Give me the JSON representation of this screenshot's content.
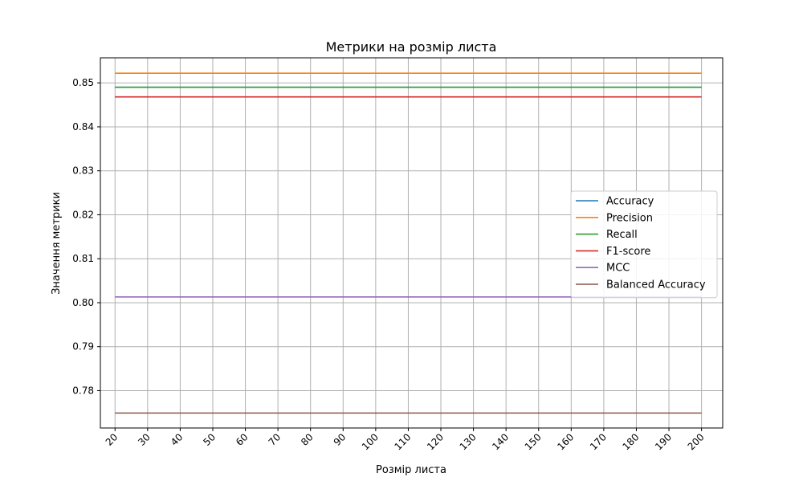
{
  "chart_data": {
    "type": "line",
    "title": "Метрики на розмір листа",
    "xlabel": "Розмір листа",
    "ylabel": "Значення метрики",
    "x": [
      20,
      30,
      40,
      50,
      60,
      70,
      80,
      90,
      100,
      110,
      120,
      130,
      140,
      150,
      160,
      170,
      180,
      190,
      200
    ],
    "x_tick_labels": [
      "20",
      "30",
      "40",
      "50",
      "60",
      "70",
      "80",
      "90",
      "100",
      "110",
      "120",
      "130",
      "140",
      "150",
      "160",
      "170",
      "180",
      "190",
      "200"
    ],
    "y_tick_values": [
      0.78,
      0.79,
      0.8,
      0.81,
      0.82,
      0.83,
      0.84,
      0.85
    ],
    "y_tick_labels": [
      "0.78",
      "0.79",
      "0.80",
      "0.81",
      "0.82",
      "0.83",
      "0.84",
      "0.85"
    ],
    "xlim": [
      15.5,
      206.5
    ],
    "ylim": [
      0.7715,
      0.8557
    ],
    "grid": true,
    "legend_position": "center-right",
    "series": [
      {
        "name": "Accuracy",
        "color": "#1f77b4",
        "values": [
          0.849,
          0.849,
          0.849,
          0.849,
          0.849,
          0.849,
          0.849,
          0.849,
          0.849,
          0.849,
          0.849,
          0.849,
          0.849,
          0.849,
          0.849,
          0.849,
          0.849,
          0.849,
          0.849
        ]
      },
      {
        "name": "Precision",
        "color": "#ff7f0e",
        "values": [
          0.8522,
          0.8522,
          0.8522,
          0.8522,
          0.8522,
          0.8522,
          0.8522,
          0.8522,
          0.8522,
          0.8522,
          0.8522,
          0.8522,
          0.8522,
          0.8522,
          0.8522,
          0.8522,
          0.8522,
          0.8522,
          0.8522
        ]
      },
      {
        "name": "Recall",
        "color": "#2ca02c",
        "values": [
          0.849,
          0.849,
          0.849,
          0.849,
          0.849,
          0.849,
          0.849,
          0.849,
          0.849,
          0.849,
          0.849,
          0.849,
          0.849,
          0.849,
          0.849,
          0.849,
          0.849,
          0.849,
          0.849
        ]
      },
      {
        "name": "F1-score",
        "color": "#d62728",
        "values": [
          0.8468,
          0.8468,
          0.8468,
          0.8468,
          0.8468,
          0.8468,
          0.8468,
          0.8468,
          0.8468,
          0.8468,
          0.8468,
          0.8468,
          0.8468,
          0.8468,
          0.8468,
          0.8468,
          0.8468,
          0.8468,
          0.8468
        ]
      },
      {
        "name": "MCC",
        "color": "#9467bd",
        "values": [
          0.8013,
          0.8013,
          0.8013,
          0.8013,
          0.8013,
          0.8013,
          0.8013,
          0.8013,
          0.8013,
          0.8013,
          0.8013,
          0.8013,
          0.8013,
          0.8013,
          0.8013,
          0.8013,
          0.8013,
          0.8013,
          0.8013
        ]
      },
      {
        "name": "Balanced Accuracy",
        "color": "#8c564b",
        "values": [
          0.7749,
          0.7749,
          0.7749,
          0.7749,
          0.7749,
          0.7749,
          0.7749,
          0.7749,
          0.7749,
          0.7749,
          0.7749,
          0.7749,
          0.7749,
          0.7749,
          0.7749,
          0.7749,
          0.7749,
          0.7749,
          0.7749
        ]
      }
    ]
  }
}
